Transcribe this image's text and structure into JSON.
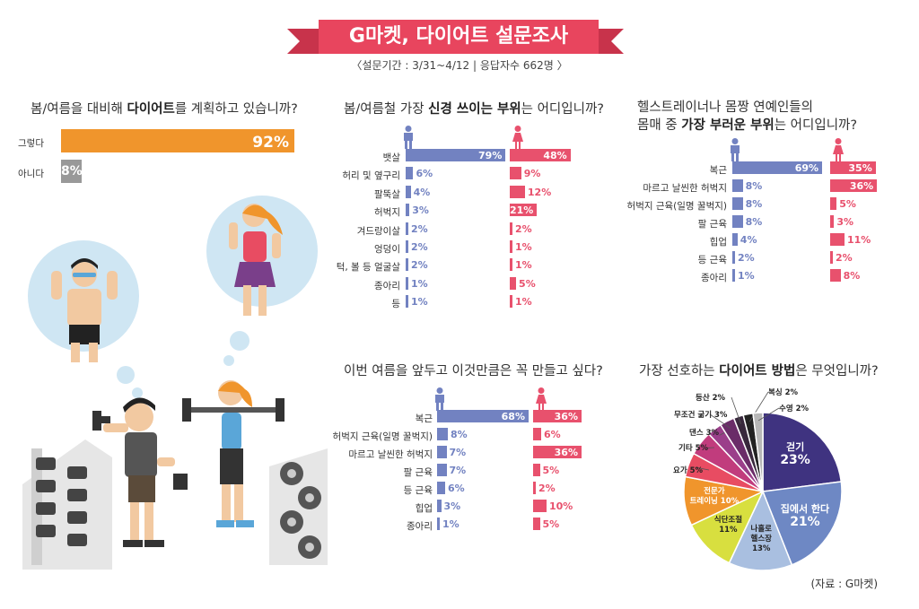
{
  "header": {
    "title": "G마켓, 다이어트 설문조사",
    "subtitle": "〈설문기간 : 3/31~4/12  |  응답자수 662명 〉"
  },
  "colors": {
    "male": "#7282c1",
    "female": "#e8516d",
    "accent": "#f0952c",
    "title": "#e8455e"
  },
  "q1": {
    "question_pre": "봄/여름을 대비해 ",
    "question_bold": "다이어트",
    "question_post": "를 계획하고 있습니까?",
    "chart_data": {
      "type": "bar",
      "categories": [
        "그렇다",
        "아니다"
      ],
      "values": [
        92,
        8
      ],
      "value_labels": [
        "92%",
        "8%"
      ]
    }
  },
  "q2": {
    "question_pre": "봄/여름철 가장 ",
    "question_bold": "신경 쓰이는 부위",
    "question_post": "는 어디입니까?",
    "chart_data": {
      "type": "bar",
      "categories": [
        "뱃살",
        "허리 및 옆구리",
        "팔뚝살",
        "허벅지",
        "겨드랑이살",
        "엉덩이",
        "턱, 볼 등 얼굴살",
        "종아리",
        "등"
      ],
      "series": [
        {
          "values": [
            79,
            6,
            4,
            3,
            2,
            2,
            2,
            1,
            1
          ],
          "labels": [
            "79%",
            "6%",
            "4%",
            "3%",
            "2%",
            "2%",
            "2%",
            "1%",
            "1%"
          ]
        },
        {
          "values": [
            48,
            9,
            12,
            21,
            2,
            1,
            1,
            5,
            1
          ],
          "labels": [
            "48%",
            "9%",
            "12%",
            "21%",
            "2%",
            "1%",
            "1%",
            "5%",
            "1%"
          ]
        }
      ]
    }
  },
  "q3": {
    "question_line1": "헬스트레이너나 몸짱 연예인들의",
    "question_pre": "몸매 중 ",
    "question_bold": "가장 부러운 부위",
    "question_post": "는 어디입니까?",
    "chart_data": {
      "type": "bar",
      "categories": [
        "복근",
        "마르고 날씬한 허벅지",
        "허벅지 근육(일명 꿀벅지)",
        "팔 근육",
        "힙업",
        "등 근육",
        "종아리"
      ],
      "series": [
        {
          "values": [
            69,
            8,
            8,
            8,
            4,
            2,
            1
          ],
          "labels": [
            "69%",
            "8%",
            "8%",
            "8%",
            "4%",
            "2%",
            "1%"
          ]
        },
        {
          "values": [
            35,
            36,
            5,
            3,
            11,
            2,
            8
          ],
          "labels": [
            "35%",
            "36%",
            "5%",
            "3%",
            "11%",
            "2%",
            "8%"
          ]
        }
      ]
    }
  },
  "q4": {
    "question": "이번 여름을 앞두고 이것만큼은 꼭 만들고 싶다?",
    "chart_data": {
      "type": "bar",
      "categories": [
        "복근",
        "허벅지 근육(일명 꿀벅지)",
        "마르고 날씬한 허벅지",
        "팔 근육",
        "등 근육",
        "힙업",
        "종아리"
      ],
      "series": [
        {
          "values": [
            68,
            8,
            7,
            7,
            6,
            3,
            1
          ],
          "labels": [
            "68%",
            "8%",
            "7%",
            "7%",
            "6%",
            "3%",
            "1%"
          ]
        },
        {
          "values": [
            36,
            6,
            36,
            5,
            2,
            10,
            5
          ],
          "labels": [
            "36%",
            "6%",
            "36%",
            "5%",
            "2%",
            "10%",
            "5%"
          ]
        }
      ]
    }
  },
  "q5": {
    "question_pre": "가장 선호하는 ",
    "question_bold": "다이어트 방법",
    "question_post": "은 무엇입니까?",
    "chart_data": {
      "type": "pie",
      "slices": [
        {
          "line1": "걷기",
          "line2": "23%",
          "value": 23,
          "color": "#3f3380"
        },
        {
          "line1": "집에서 한다",
          "line2": "21%",
          "value": 21,
          "color": "#6e88c4"
        },
        {
          "line1": "나홀로",
          "line2": "헬스장",
          "line3": "13%",
          "value": 13,
          "color": "#a9bfe0"
        },
        {
          "line1": "식단조절",
          "line2": "11%",
          "value": 11,
          "color": "#d8df3f"
        },
        {
          "line1": "전문가",
          "line2": "트레이닝 10%",
          "value": 10,
          "color": "#f0952c"
        },
        {
          "line1": "요가 5%",
          "value": 5,
          "color": "#e84c62"
        },
        {
          "line1": "기타 5%",
          "value": 5,
          "color": "#c13c7d"
        },
        {
          "line1": "댄스 3%",
          "value": 3,
          "color": "#9b3f8a"
        },
        {
          "line1": "무조건 굶기 3%",
          "value": 3,
          "color": "#6a2c68"
        },
        {
          "line1": "등산 2%",
          "value": 2,
          "color": "#38283c"
        },
        {
          "line1": "복싱 2%",
          "value": 2,
          "color": "#222222"
        },
        {
          "line1": "수영 2%",
          "value": 2,
          "color": "#b7b7b7"
        }
      ]
    }
  },
  "source": "(자료 : G마켓)"
}
